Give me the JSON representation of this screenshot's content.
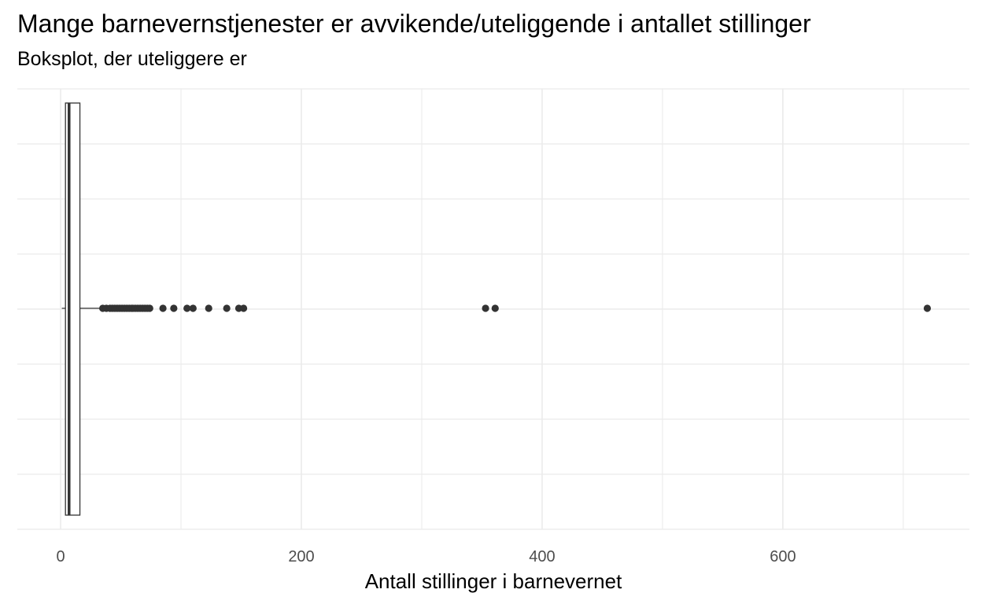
{
  "chart_data": {
    "type": "boxplot",
    "title": "Mange barnevernstjenester er avvikende/uteliggende i antallet stillinger",
    "subtitle": "Boksplot, der uteliggere er",
    "xlabel": "Antall stillinger i barnevernet",
    "ylabel": "",
    "xlim": [
      -36,
      755
    ],
    "x_ticks": [
      0,
      200,
      400,
      600
    ],
    "x_tick_labels": [
      "0",
      "200",
      "400",
      "600"
    ],
    "grid": true,
    "legend": "none",
    "box": {
      "min": 1,
      "q1": 4,
      "median": 7,
      "q3": 16,
      "whisker_high": 33
    },
    "outliers": [
      35,
      38,
      41,
      43,
      45,
      47,
      49,
      51,
      53,
      55,
      57,
      59,
      60,
      62,
      64,
      66,
      68,
      70,
      72,
      74,
      85,
      94,
      105,
      110,
      123,
      138,
      148,
      152,
      353,
      361,
      720
    ],
    "colors": {
      "box_outline": "#333333",
      "points": "#333333",
      "grid": "#ebebeb",
      "background": "#ffffff"
    }
  }
}
